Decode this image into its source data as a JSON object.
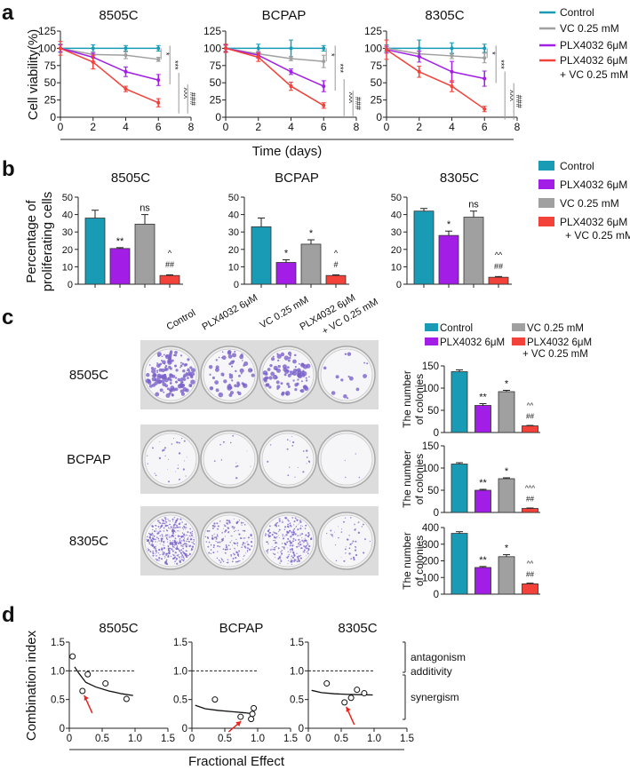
{
  "panel_labels": [
    "a",
    "b",
    "c",
    "d"
  ],
  "colors": {
    "control": "#1a9bb5",
    "vc": "#a0a0a0",
    "plx": "#a21ee6",
    "combo": "#f2423a",
    "plate_dot": "#7a62c9"
  },
  "chart_data": [
    {
      "id": "a",
      "type": "line",
      "ylabel": "Cell viability(%)",
      "xlabel": "Time (days)",
      "xlim": [
        0,
        8
      ],
      "ylim": [
        0,
        125
      ],
      "xticks": [
        0,
        2,
        4,
        6,
        8
      ],
      "yticks": [
        0,
        25,
        50,
        75,
        100,
        125
      ],
      "legend": [
        "Control",
        "VC 0.25 mM",
        "PLX4032 6μM",
        "PLX4032 6μM",
        "+ VC 0.25 mM"
      ],
      "x": [
        0,
        2,
        4,
        6
      ],
      "panels": [
        {
          "title": "8505C",
          "series": [
            {
              "name": "Control",
              "values": [
                100,
                100,
                100,
                100
              ],
              "err": [
                6,
                5,
                4,
                4
              ]
            },
            {
              "name": "VC 0.25 mM",
              "values": [
                100,
                91,
                90,
                84
              ],
              "err": [
                5,
                4,
                5,
                3
              ]
            },
            {
              "name": "PLX4032 6μM",
              "values": [
                100,
                87,
                66,
                54
              ],
              "err": [
                5,
                6,
                7,
                8
              ]
            },
            {
              "name": "PLX4032 6μM + VC 0.25 mM",
              "values": [
                100,
                80,
                41,
                21
              ],
              "err": [
                10,
                10,
                4,
                6
              ]
            }
          ],
          "sig": [
            "*",
            "***",
            "^^^",
            "###"
          ]
        },
        {
          "title": "BCPAP",
          "series": [
            {
              "name": "Control",
              "values": [
                100,
                100,
                100,
                100
              ],
              "err": [
                6,
                6,
                12,
                4
              ]
            },
            {
              "name": "VC 0.25 mM",
              "values": [
                100,
                92,
                85,
                81
              ],
              "err": [
                4,
                4,
                3,
                9
              ]
            },
            {
              "name": "PLX4032 6μM",
              "values": [
                100,
                90,
                66,
                45
              ],
              "err": [
                5,
                4,
                4,
                8
              ]
            },
            {
              "name": "PLX4032 6μM + VC 0.25 mM",
              "values": [
                100,
                87,
                45,
                17
              ],
              "err": [
                6,
                6,
                6,
                4
              ]
            }
          ],
          "sig": [
            "*",
            "***",
            "^^^",
            "###"
          ]
        },
        {
          "title": "8305C",
          "series": [
            {
              "name": "Control",
              "values": [
                100,
                100,
                100,
                100
              ],
              "err": [
                5,
                12,
                8,
                6
              ]
            },
            {
              "name": "VC 0.25 mM",
              "values": [
                100,
                92,
                89,
                86
              ],
              "err": [
                3,
                4,
                4,
                7
              ]
            },
            {
              "name": "PLX4032 6μM",
              "values": [
                98,
                88,
                66,
                56
              ],
              "err": [
                5,
                8,
                15,
                11
              ]
            },
            {
              "name": "PLX4032 6μM + VC 0.25 mM",
              "values": [
                98,
                66,
                45,
                12
              ],
              "err": [
                14,
                8,
                8,
                4
              ]
            }
          ],
          "sig": [
            "*",
            "***",
            "^^^",
            "###"
          ]
        }
      ]
    },
    {
      "id": "b",
      "type": "bar",
      "ylabel": [
        "Percentage of",
        "proliferating cells"
      ],
      "ylim": [
        0,
        50
      ],
      "yticks": [
        0,
        10,
        20,
        30,
        40,
        50
      ],
      "categories": [
        "Control",
        "PLX4032 6μM",
        "VC 0.25 mM",
        "PLX4032 6μM + VC 0.25 mM"
      ],
      "legend": [
        "Control",
        "PLX4032 6μM",
        "VC 0.25 mM",
        "PLX4032 6μM",
        "+ VC 0.25 mM"
      ],
      "panels": [
        {
          "title": "8505C",
          "values": [
            38,
            20.5,
            34.5,
            5
          ],
          "err": [
            4.5,
            0.5,
            5.5,
            0.4
          ],
          "sig": [
            "",
            "**",
            "ns",
            "^",
            "##"
          ]
        },
        {
          "title": "BCPAP",
          "values": [
            33,
            12.5,
            23,
            5
          ],
          "err": [
            5,
            1.5,
            2.5,
            0.4
          ],
          "sig": [
            "",
            "*",
            "*",
            "^",
            "#"
          ]
        },
        {
          "title": "8305C",
          "values": [
            42,
            28,
            38.5,
            4
          ],
          "err": [
            1.5,
            2.5,
            3.5,
            0.4
          ],
          "sig": [
            "",
            "*",
            "ns",
            "^^",
            "##"
          ]
        }
      ]
    },
    {
      "id": "c",
      "type": "bar",
      "ylabel": [
        "The number",
        "of colonies"
      ],
      "plate_columns": [
        "Control",
        "PLX4032 6μM",
        "VC 0.25 mM",
        "PLX4032 6μM",
        "+ VC 0.25 mM"
      ],
      "categories": [
        "Control",
        "PLX4032 6μM",
        "VC 0.25 mM",
        "PLX4032 6μM + VC 0.25 mM"
      ],
      "legend": [
        "Control",
        "VC 0.25 mM",
        "PLX4032 6μM",
        "PLX4032 6μM",
        "+ VC 0.25 mM"
      ],
      "panels": [
        {
          "title": "8505C",
          "ylim": [
            0,
            150
          ],
          "yticks": [
            0,
            50,
            100,
            150
          ],
          "values": [
            137,
            61,
            92,
            15
          ],
          "err": [
            4,
            4,
            3,
            1
          ],
          "sig": [
            "",
            "**",
            "*",
            "^^",
            "##"
          ],
          "plate_density": [
            140,
            60,
            90,
            14
          ]
        },
        {
          "title": "BCPAP",
          "ylim": [
            0,
            150
          ],
          "yticks": [
            0,
            50,
            100,
            150
          ],
          "values": [
            109,
            50,
            76,
            9
          ],
          "err": [
            3,
            2,
            2,
            1
          ],
          "sig": [
            "",
            "**",
            "*",
            "^^^",
            "##"
          ],
          "plate_density": [
            30,
            12,
            20,
            4
          ]
        },
        {
          "title": "8305C",
          "ylim": [
            0,
            400
          ],
          "yticks": [
            0,
            100,
            200,
            300,
            400
          ],
          "values": [
            365,
            160,
            225,
            62
          ],
          "err": [
            10,
            6,
            12,
            4
          ],
          "sig": [
            "",
            "**",
            "*",
            "^^",
            "##"
          ],
          "plate_density": [
            400,
            170,
            240,
            50
          ]
        }
      ]
    },
    {
      "id": "d",
      "type": "scatter",
      "ylabel": "Combination index",
      "xlabel": "Fractional Effect",
      "xlim": [
        0,
        1.5
      ],
      "ylim": [
        0,
        1.5
      ],
      "xticks": [
        "0",
        "0.5",
        "1.0",
        "1.5"
      ],
      "yticks": [
        "0",
        "0.5",
        "1.0",
        "1.5"
      ],
      "reference_line": 1.0,
      "annotations": [
        "antagonism",
        "additivity",
        "synergism"
      ],
      "panels": [
        {
          "title": "8505C",
          "points": [
            [
              0.05,
              1.25
            ],
            [
              0.2,
              0.65
            ],
            [
              0.28,
              0.94
            ],
            [
              0.55,
              0.78
            ],
            [
              0.87,
              0.51
            ]
          ],
          "curve": [
            [
              0.08,
              1.07
            ],
            [
              0.15,
              0.95
            ],
            [
              0.25,
              0.8
            ],
            [
              0.4,
              0.72
            ],
            [
              0.6,
              0.65
            ],
            [
              0.8,
              0.6
            ],
            [
              0.97,
              0.57
            ]
          ],
          "arrow_to": [
            0.2,
            0.65
          ]
        },
        {
          "title": "BCPAP",
          "points": [
            [
              0.35,
              0.5
            ],
            [
              0.74,
              0.2
            ],
            [
              0.9,
              0.16
            ],
            [
              0.92,
              0.25
            ],
            [
              0.94,
              0.35
            ]
          ],
          "curve": [
            [
              0.05,
              0.4
            ],
            [
              0.2,
              0.34
            ],
            [
              0.4,
              0.31
            ],
            [
              0.6,
              0.29
            ],
            [
              0.8,
              0.27
            ],
            [
              0.95,
              0.25
            ]
          ],
          "arrow_to": [
            0.72,
            0.2
          ]
        },
        {
          "title": "8305C",
          "points": [
            [
              0.28,
              0.78
            ],
            [
              0.55,
              0.45
            ],
            [
              0.65,
              0.53
            ],
            [
              0.74,
              0.67
            ],
            [
              0.85,
              0.61
            ]
          ],
          "curve": [
            [
              0.05,
              0.66
            ],
            [
              0.2,
              0.62
            ],
            [
              0.4,
              0.6
            ],
            [
              0.6,
              0.59
            ],
            [
              0.8,
              0.585
            ],
            [
              0.98,
              0.58
            ]
          ],
          "arrow_to": [
            0.55,
            0.45
          ]
        }
      ]
    }
  ]
}
